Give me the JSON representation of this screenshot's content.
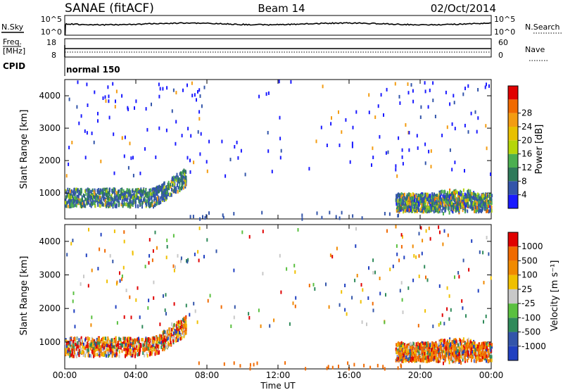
{
  "header": {
    "radar": "SANAE (fitACF)",
    "beam": "Beam 14",
    "date": "02/Oct/2014"
  },
  "top_panel": {
    "left_label": "N.Sky",
    "right_label": "N.Search",
    "left_ticks": [
      "10^5",
      "10^0"
    ],
    "right_ticks": [
      "10^5",
      "10^0"
    ]
  },
  "freq_panel": {
    "left_label_1": "Freq.",
    "left_label_2": "[MHz]",
    "right_label": "Nave",
    "left_ticks": [
      "18",
      "8"
    ],
    "right_ticks": [
      "60",
      "0"
    ]
  },
  "cpid": {
    "label": "CPID",
    "value": "normal 150"
  },
  "x_axis": {
    "label": "Time UT",
    "ticks": [
      "00:00",
      "04:00",
      "08:00",
      "12:00",
      "16:00",
      "20:00",
      "00:00"
    ]
  },
  "chart_data": [
    {
      "type": "heatmap",
      "title": "",
      "xlabel": "Time UT",
      "ylabel": "Slant Range [km]",
      "ylim": [
        200,
        4500
      ],
      "yticks": [
        "1000",
        "2000",
        "3000",
        "4000"
      ],
      "colorbar": {
        "label": "Power [dB]",
        "range": [
          0,
          32
        ],
        "ticks": [
          "4",
          "8",
          "12",
          "16",
          "20",
          "24",
          "28"
        ],
        "colors": [
          "#1a1aff",
          "#3355aa",
          "#2f7a5a",
          "#4caf50",
          "#b5d60a",
          "#e8c000",
          "#f39c12",
          "#f06a00",
          "#e00000"
        ]
      }
    },
    {
      "type": "heatmap",
      "title": "",
      "xlabel": "Time UT",
      "ylabel": "Slant Range [km]",
      "ylim": [
        200,
        4500
      ],
      "yticks": [
        "1000",
        "2000",
        "3000",
        "4000"
      ],
      "colorbar": {
        "label": "Velocity [m s⁻¹]",
        "ticks": [
          "1000",
          "500",
          "100",
          "25",
          "-25",
          "-100",
          "-500",
          "-1000"
        ],
        "colors": [
          "#2040c0",
          "#3355aa",
          "#2f8a5a",
          "#5ac040",
          "#c8c8c8",
          "#f0c000",
          "#f08a00",
          "#f06a00",
          "#e00000"
        ]
      }
    }
  ]
}
